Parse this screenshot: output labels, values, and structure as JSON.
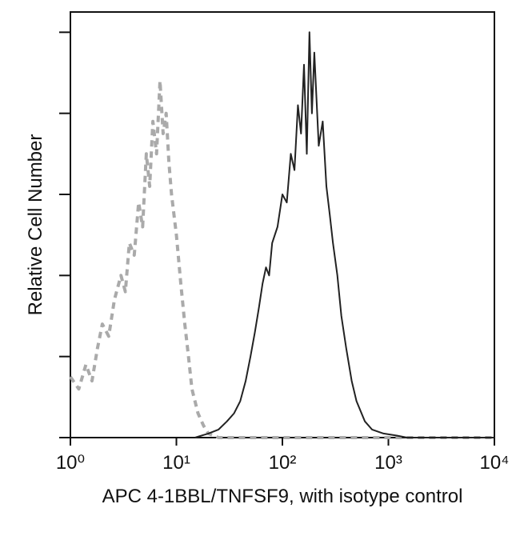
{
  "chart_data": {
    "type": "line",
    "xlabel": "APC 4-1BBL/TNFSF9, with isotype control",
    "ylabel": "Relative Cell Number",
    "xscale": "log",
    "xlim": [
      1,
      10000
    ],
    "xticks": [
      {
        "value": 1,
        "label": "10⁰"
      },
      {
        "value": 10,
        "label": "10¹"
      },
      {
        "value": 100,
        "label": "10²"
      },
      {
        "value": 1000,
        "label": "10³"
      },
      {
        "value": 10000,
        "label": "10⁴"
      }
    ],
    "ylim": [
      0,
      105
    ],
    "yticks": [
      0,
      20,
      40,
      60,
      80,
      100
    ],
    "series": [
      {
        "color": "#aaaaaa",
        "line_style": "dashed",
        "x": [
          1,
          1.2,
          1.4,
          1.6,
          1.8,
          2,
          2.3,
          2.6,
          3,
          3.3,
          3.6,
          4,
          4.4,
          4.8,
          5.2,
          5.6,
          6,
          6.5,
          7,
          7.5,
          8,
          8.5,
          9,
          10,
          11,
          12,
          13,
          14,
          16,
          18,
          20,
          25,
          100,
          1000,
          10000
        ],
        "values": [
          15,
          12,
          18,
          14,
          22,
          28,
          25,
          34,
          40,
          36,
          48,
          45,
          58,
          52,
          70,
          62,
          78,
          70,
          88,
          75,
          80,
          68,
          60,
          50,
          38,
          28,
          20,
          12,
          6,
          3,
          1,
          0,
          0,
          0,
          0
        ]
      },
      {
        "color": "#222222",
        "line_style": "solid",
        "x": [
          15,
          20,
          25,
          30,
          35,
          40,
          45,
          50,
          55,
          60,
          65,
          70,
          75,
          80,
          90,
          100,
          110,
          120,
          130,
          140,
          150,
          160,
          170,
          180,
          190,
          200,
          220,
          240,
          260,
          280,
          300,
          330,
          360,
          400,
          450,
          500,
          600,
          700,
          900,
          1200,
          1500,
          10000
        ],
        "values": [
          0,
          1,
          2,
          4,
          6,
          9,
          14,
          20,
          26,
          32,
          38,
          42,
          40,
          48,
          52,
          60,
          58,
          70,
          66,
          82,
          75,
          92,
          70,
          100,
          80,
          95,
          72,
          78,
          62,
          55,
          48,
          40,
          30,
          22,
          14,
          9,
          4,
          2,
          1,
          0.5,
          0,
          0
        ]
      }
    ]
  }
}
